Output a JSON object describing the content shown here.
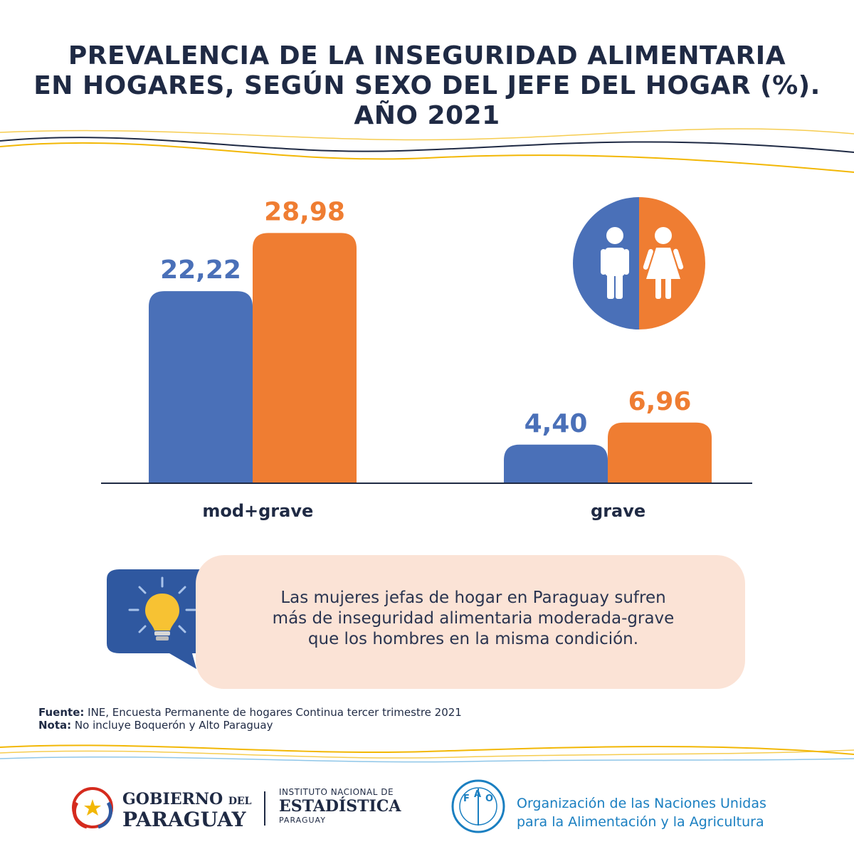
{
  "title_lines": [
    "PREVALENCIA DE LA INSEGURIDAD ALIMENTARIA",
    "EN HOGARES, SEGÚN SEXO DEL JEFE DEL HOGAR (%).",
    "AÑO 2021"
  ],
  "chart_data": {
    "type": "bar",
    "title": "PREVALENCIA DE LA INSEGURIDAD ALIMENTARIA EN HOGARES, SEGÚN SEXO DEL JEFE DEL HOGAR (%). AÑO 2021",
    "categories": [
      "mod+grave",
      "grave"
    ],
    "series": [
      {
        "values": [
          22.22,
          4.4
        ],
        "labels": [
          "22,22",
          "4,40"
        ],
        "color": "#4a70b8"
      },
      {
        "values": [
          28.98,
          6.96
        ],
        "labels": [
          "28,98",
          "6,96"
        ],
        "color": "#ef7d32"
      }
    ],
    "ylim": [
      0,
      30
    ],
    "grid": false,
    "legend": "icon top-right (male / female)"
  },
  "colors": {
    "male": "#4a70b8",
    "female": "#ef7d32",
    "navy": "#1f2a44",
    "note_bg": "#fbe3d6",
    "fao_blue": "#1a7fc1"
  },
  "icons": [
    "male-person-icon",
    "female-person-icon",
    "lightbulb-icon",
    "paraguay-coat-of-arms-logo",
    "fao-logo"
  ],
  "note": {
    "lines": [
      "Las mujeres jefas de hogar en Paraguay sufren",
      "más de inseguridad alimentaria moderada-grave",
      "que los hombres en la misma condición."
    ]
  },
  "footer": {
    "source_label": "Fuente:",
    "source_text": " INE, Encuesta Permanente de hogares Continua tercer trimestre 2021",
    "note_label": "Nota:",
    "note_text": " No incluye Boquerón y Alto Paraguay"
  },
  "logos": {
    "gov_line1_a": "GOBIERNO",
    "gov_line1_b": "DEL",
    "gov_line2": "PARAGUAY",
    "ine_line1": "INSTITUTO NACIONAL DE",
    "ine_line2": "ESTADÍSTICA",
    "ine_line3": "PARAGUAY",
    "fao_line1": "Organización de las Naciones Unidas",
    "fao_line2": "para la Alimentación y la Agricultura"
  }
}
